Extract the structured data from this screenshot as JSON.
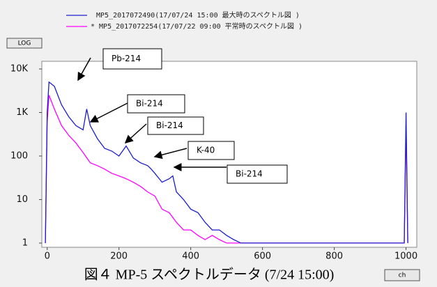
{
  "chart_data": {
    "type": "line",
    "log_y": true,
    "caption": "図４ MP-5 スペクトルデータ (7/24 15:00)",
    "buttons": [
      "LOG",
      "ch"
    ],
    "xlim": [
      -15,
      1030
    ],
    "ylim": [
      0.8,
      15000
    ],
    "xticks": [
      0,
      200,
      400,
      600,
      800,
      1000
    ],
    "yticks": [
      {
        "value": 10000,
        "label": "10K"
      },
      {
        "value": 1000,
        "label": "1K"
      },
      100,
      10,
      1
    ],
    "annotations": [
      "Pb-214",
      "Bi-214",
      "Bi-214",
      "K-40",
      "Bi-214"
    ],
    "series": [
      {
        "name": "MP5_2017072490(17/07/24 15:00 最大時のスペクトル図 )",
        "color": "#1c1ccc",
        "x": [
          -5,
          0,
          5,
          20,
          40,
          60,
          80,
          100,
          110,
          120,
          140,
          160,
          180,
          200,
          220,
          240,
          260,
          280,
          290,
          300,
          320,
          340,
          350,
          360,
          380,
          400,
          420,
          440,
          460,
          480,
          500,
          520,
          540,
          990,
          995,
          1000,
          1005
        ],
        "values": [
          1,
          1000,
          5000,
          4000,
          1500,
          800,
          500,
          400,
          1200,
          500,
          250,
          150,
          130,
          100,
          170,
          90,
          70,
          60,
          50,
          40,
          25,
          30,
          35,
          15,
          10,
          6,
          5,
          3,
          2,
          2,
          1.5,
          1.2,
          1,
          1,
          1,
          1000,
          1
        ]
      },
      {
        "name": "* MP5_2017072254(17/07/22 09:00 平常時のスペクトル図 )",
        "color": "#ff00ff",
        "x": [
          -5,
          0,
          5,
          20,
          40,
          60,
          80,
          100,
          120,
          140,
          160,
          180,
          200,
          220,
          240,
          260,
          280,
          300,
          320,
          340,
          360,
          380,
          400,
          420,
          440,
          460,
          480,
          500,
          520,
          990,
          995,
          1000,
          1005
        ],
        "values": [
          1,
          600,
          2500,
          1200,
          500,
          300,
          200,
          120,
          70,
          60,
          50,
          40,
          35,
          30,
          25,
          20,
          15,
          12,
          6,
          5,
          3,
          2,
          2,
          1.5,
          1.2,
          1.5,
          1.2,
          1,
          1,
          1,
          1,
          500,
          1
        ]
      }
    ]
  }
}
